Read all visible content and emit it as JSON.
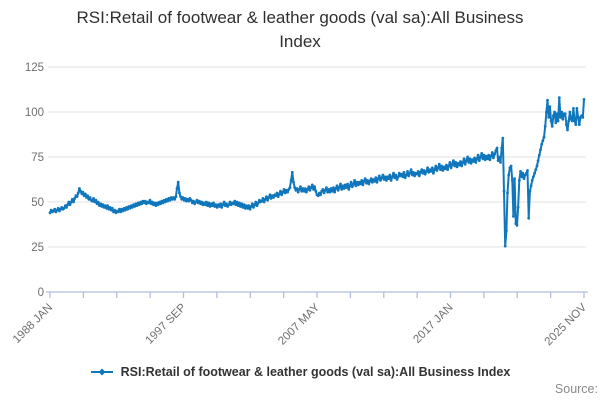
{
  "title": {
    "line1": "RSI:Retail of footwear & leather goods (val sa):All Business",
    "line2": "Index"
  },
  "legend": {
    "label": "RSI:Retail of footwear & leather goods (val sa):All Business Index"
  },
  "source": {
    "label": "Source:"
  },
  "colors": {
    "series": "#1077bc",
    "grid": "#e2e2e2",
    "axis": "#b0bedf",
    "title_text": "#2f2f2f",
    "tick_label": "#6f6f6f",
    "legend_text": "#333333",
    "source_text": "#8a8a8a"
  },
  "chart_data": {
    "type": "line",
    "title": "RSI:Retail of footwear & leather goods (val sa):All Business Index",
    "xlabel": "",
    "ylabel": "",
    "x_start": "1988 JAN",
    "x_end": "2025 NOV",
    "x_frequency": "monthly",
    "x_tick_count": 17,
    "x_labeled_tick_indices": [
      0,
      4,
      8,
      12,
      16
    ],
    "x_tick_labels": [
      "1988 JAN",
      "1997 SEP",
      "2007 MAY",
      "2017 JAN",
      "2025 NOV"
    ],
    "y_ticks": [
      0,
      25,
      50,
      75,
      100,
      125
    ],
    "ylim": [
      0,
      125
    ],
    "grid": "horizontal",
    "legend_position": "bottom",
    "series": [
      {
        "name": "RSI:Retail of footwear & leather goods (val sa):All Business Index",
        "values": [
          44,
          45.5,
          44.5,
          45,
          46,
          44.5,
          45.5,
          46.5,
          45,
          46,
          47,
          46,
          46.5,
          48,
          47,
          48.5,
          50,
          48.5,
          50,
          51.5,
          50,
          52,
          53.5,
          53,
          55,
          57.5,
          56,
          54.5,
          55.5,
          53.5,
          54.5,
          52.5,
          53.5,
          51.5,
          52.5,
          51,
          50.5,
          52,
          50,
          51,
          49,
          50,
          48,
          49,
          47.5,
          48.5,
          47,
          48,
          46.5,
          48,
          46,
          47,
          45.5,
          46.5,
          44.5,
          45.5,
          44,
          45,
          44.5,
          46,
          44.5,
          46,
          45,
          46.5,
          45.5,
          47,
          46,
          47.5,
          46.5,
          48,
          47,
          48.5,
          47.5,
          49,
          48,
          49.5,
          48.5,
          50,
          49,
          50.5,
          49.5,
          50.5,
          49,
          50,
          49.5,
          51,
          49,
          50,
          48.5,
          49.5,
          48,
          49.5,
          48.5,
          50,
          49,
          50.5,
          49.5,
          51,
          50,
          51.5,
          50.5,
          52,
          51,
          52.5,
          51.5,
          52.5,
          51.5,
          53,
          57.5,
          61,
          55,
          53,
          51.5,
          52.5,
          51,
          52,
          50.5,
          51.5,
          50.5,
          52,
          51,
          49.5,
          50.5,
          49,
          50,
          51,
          49.5,
          50.5,
          49,
          50,
          48.5,
          49.5,
          48.5,
          50,
          48,
          49.5,
          47.5,
          49,
          48,
          49.5,
          47.5,
          48.5,
          47,
          48.5,
          47.5,
          49,
          47,
          48.5,
          50,
          48,
          49,
          47.5,
          48.5,
          50,
          48.5,
          49.5,
          49,
          50.5,
          48.5,
          50,
          48,
          49.5,
          47.5,
          49,
          47,
          48.5,
          46.5,
          48,
          46.5,
          48,
          46,
          47.5,
          49,
          47,
          48.5,
          50,
          48,
          49.5,
          51,
          50,
          50.5,
          52,
          50,
          51.5,
          53,
          51,
          52.5,
          54,
          52,
          53.5,
          52.5,
          54,
          53.5,
          55,
          53,
          54.5,
          56,
          54,
          55.5,
          57,
          55,
          56.5,
          55.5,
          57,
          58,
          62,
          66.5,
          61,
          58,
          56.5,
          57.5,
          55.5,
          57,
          58.5,
          56,
          57.5,
          56,
          57.5,
          55.5,
          57,
          58.5,
          56.5,
          58,
          59.5,
          57,
          58.5,
          56,
          54,
          53.5,
          55,
          54,
          56,
          57,
          55,
          56.5,
          58,
          55.5,
          57,
          55.5,
          57.5,
          56,
          58,
          55.5,
          57.5,
          59,
          56.5,
          58,
          60,
          57,
          59,
          57.5,
          59.5,
          58,
          60,
          57,
          59,
          61,
          58.5,
          60,
          62,
          59,
          61,
          59.5,
          61,
          60,
          62,
          59.5,
          61.5,
          63,
          60.5,
          62,
          60,
          61.5,
          63,
          61,
          62.5,
          61.5,
          63.5,
          61,
          63,
          64.5,
          62,
          63.5,
          65,
          62.5,
          64,
          62,
          64,
          63,
          65,
          62,
          64,
          66,
          63.5,
          65,
          62.5,
          64,
          66,
          64.5,
          65.5,
          64,
          66.5,
          63.5,
          65,
          67,
          64.5,
          66,
          68,
          65,
          66.5,
          64.5,
          66,
          65.5,
          67,
          64.5,
          66.5,
          68,
          66,
          67.5,
          65.5,
          67,
          69,
          66.5,
          68,
          67,
          69,
          66,
          68,
          70,
          67.5,
          69,
          71,
          68,
          70,
          67.5,
          69.5,
          68.5,
          70.5,
          68,
          70,
          72,
          69,
          71,
          73,
          70,
          72,
          69.5,
          71.5,
          70.5,
          72.5,
          70,
          72,
          74,
          71,
          73,
          75,
          72,
          74,
          71.5,
          73.5,
          72.5,
          74.5,
          72,
          74,
          76,
          73,
          75,
          77,
          74,
          76,
          73.5,
          75.5,
          74,
          76,
          73.5,
          75.5,
          77.5,
          74.5,
          76.5,
          78.5,
          80,
          73,
          75,
          72,
          80,
          85.5,
          56,
          25.5,
          34,
          55,
          65,
          69,
          70,
          62,
          42,
          63,
          38,
          37,
          47,
          62,
          67,
          64,
          66,
          63,
          65,
          66,
          67.5,
          41,
          56,
          59,
          62,
          64,
          66,
          68,
          70,
          73,
          76,
          79,
          82,
          84,
          86,
          92,
          100,
          106.5,
          97,
          103,
          95,
          92,
          98,
          100,
          94,
          99,
          95,
          108,
          97,
          100,
          96,
          99,
          99,
          93,
          90,
          95,
          100,
          96,
          95,
          102,
          95,
          93,
          102,
          97,
          93,
          97,
          98,
          97,
          107
        ]
      }
    ]
  }
}
